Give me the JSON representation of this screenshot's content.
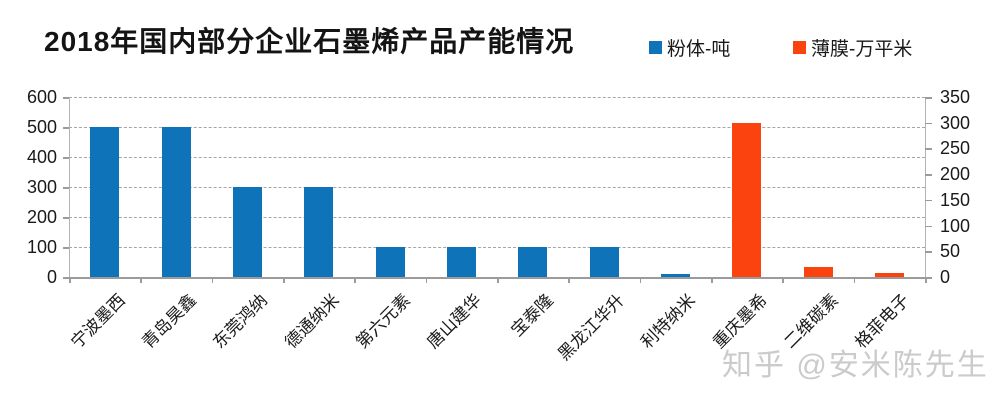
{
  "title": "2018年国内部分企业石墨烯产品产能情况",
  "watermark": "知乎 @安米陈先生",
  "legend": [
    {
      "label": "粉体-吨",
      "color": "#0E73B9"
    },
    {
      "label": "薄膜-万平米",
      "color": "#FB4310"
    }
  ],
  "colors": {
    "powder_blue": "#0E73B9",
    "film_orange": "#FB4310",
    "gridline_gray": "#a6a6a6",
    "axis_gray": "#9b9b9b",
    "watermark_gray": "#cbcbcb",
    "text_black": "#1a1a1a"
  },
  "chart_data": {
    "type": "bar",
    "title": "2018年国内部分企业石墨烯产品产能情况",
    "categories": [
      "宁波墨西",
      "青岛昊鑫",
      "东莞鸿纳",
      "德通纳米",
      "第六元素",
      "唐山建华",
      "宝泰隆",
      "黑龙江华升",
      "利特纳米",
      "重庆墨希",
      "二维碳素",
      "格菲电子"
    ],
    "series": [
      {
        "name": "粉体-吨",
        "axis": "left",
        "color": "#0E73B9",
        "values": [
          500,
          500,
          300,
          300,
          100,
          100,
          100,
          100,
          10,
          null,
          null,
          null
        ]
      },
      {
        "name": "薄膜-万平米",
        "axis": "right",
        "color": "#FB4310",
        "values": [
          null,
          null,
          null,
          null,
          null,
          null,
          null,
          null,
          null,
          300,
          20,
          8
        ]
      }
    ],
    "left_axis": {
      "min": 0,
      "max": 600,
      "step": 100,
      "tick_labels": [
        "600",
        "500",
        "400",
        "300",
        "200",
        "100",
        "0"
      ]
    },
    "right_axis": {
      "min": 0,
      "max": 350,
      "step": 50,
      "tick_labels": [
        "350",
        "300",
        "250",
        "200",
        "150",
        "100",
        "50",
        "0"
      ]
    },
    "grid": "horizontal-dashed",
    "legend_position": "top-right",
    "xlabel": "",
    "ylabel_left": "粉体-吨",
    "ylabel_right": "薄膜-万平米"
  }
}
